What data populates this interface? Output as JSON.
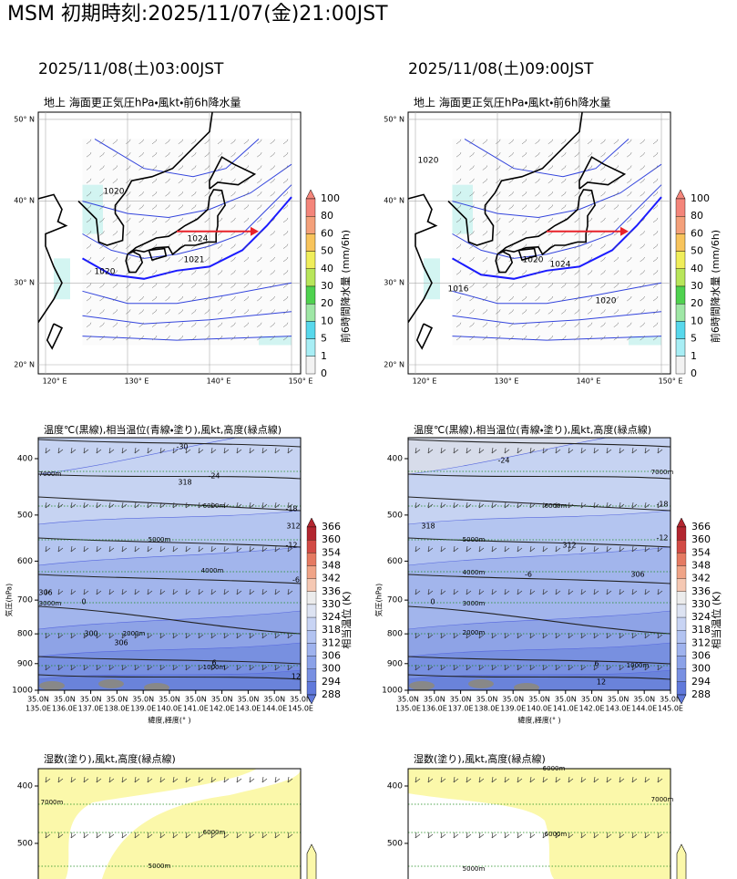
{
  "title": "MSM 初期時刻:2025/11/07(金)21:00JST",
  "map_axes": {
    "lat_labels": [
      "50° N",
      "40° N",
      "30° N",
      "20° N"
    ],
    "lon_labels": [
      "120° E",
      "130° E",
      "140° E",
      "150° E"
    ]
  },
  "precip_colorbar": {
    "label": "前6時間降水量 (mm/6h)",
    "ticks": [
      100,
      80,
      60,
      50,
      40,
      30,
      20,
      10,
      5,
      1,
      0
    ]
  },
  "cross_section_axes": {
    "y_label": "気圧(hPa)",
    "y_ticks": [
      400,
      500,
      600,
      700,
      800,
      900,
      1000
    ],
    "x_label": "緯度,経度(° )",
    "x_ticks": [
      {
        "lat": "35.0N",
        "lon": "135.0E"
      },
      {
        "lat": "35.0N",
        "lon": "136.0E"
      },
      {
        "lat": "35.0N",
        "lon": "137.0E"
      },
      {
        "lat": "35.0N",
        "lon": "138.0E"
      },
      {
        "lat": "35.0N",
        "lon": "139.0E"
      },
      {
        "lat": "35.0N",
        "lon": "140.0E"
      },
      {
        "lat": "35.0N",
        "lon": "141.0E"
      },
      {
        "lat": "35.0N",
        "lon": "142.0E"
      },
      {
        "lat": "35.0N",
        "lon": "143.0E"
      },
      {
        "lat": "35.0N",
        "lon": "144.0E"
      },
      {
        "lat": "35.0N",
        "lon": "145.0E"
      }
    ]
  },
  "theta_colorbar": {
    "label": "相当温位 (K)",
    "ticks": [
      366,
      360,
      354,
      348,
      342,
      336,
      330,
      324,
      318,
      312,
      306,
      300,
      294,
      288
    ]
  },
  "humidity_axes": {
    "y_ticks": [
      400,
      500
    ]
  },
  "panels": [
    {
      "valid_time": "2025/11/08(土)03:00JST",
      "map_title": "地上 海面更正気圧hPa・風kt・前6h降水量",
      "isobar_labels": [
        "1020",
        "1024",
        "1021",
        "1020"
      ],
      "cross_section_title": "温度℃(黒線),相当温位(青線・塗り),風kt,高度(緑点線)",
      "temperature_labels": [
        "-30",
        "-24",
        "-18",
        "-12",
        "-6",
        "0",
        "6",
        "12"
      ],
      "theta_labels": [
        "318",
        "312",
        "306",
        "300",
        "306"
      ],
      "height_labels": [
        "7000m",
        "6000m",
        "5000m",
        "4000m",
        "3000m",
        "2000m",
        "1000m"
      ],
      "humidity_title": "湿数(塗り),風kt,高度(緑点線)",
      "humidity_height_labels": [
        "7000m",
        "6000m",
        "5000m"
      ]
    },
    {
      "valid_time": "2025/11/08(土)09:00JST",
      "map_title": "地上 海面更正気圧hPa・風kt・前6h降水量",
      "isobar_labels": [
        "1020",
        "1020",
        "1024",
        "1016",
        "1020"
      ],
      "cross_section_title": "温度℃(黒線),相当温位(青線・塗り),風kt,高度(緑点線)",
      "temperature_labels": [
        "-24",
        "-18",
        "-12",
        "-6",
        "0",
        "6",
        "12"
      ],
      "theta_labels": [
        "318",
        "312",
        "306"
      ],
      "height_labels": [
        "7000m",
        "6000m",
        "5000m",
        "4000m",
        "3000m",
        "2000m",
        "1000m"
      ],
      "humidity_title": "湿数(塗り),風kt,高度(緑点線)",
      "humidity_height_labels": [
        "6000m",
        "7000m",
        "6000m",
        "5000m"
      ]
    }
  ]
}
